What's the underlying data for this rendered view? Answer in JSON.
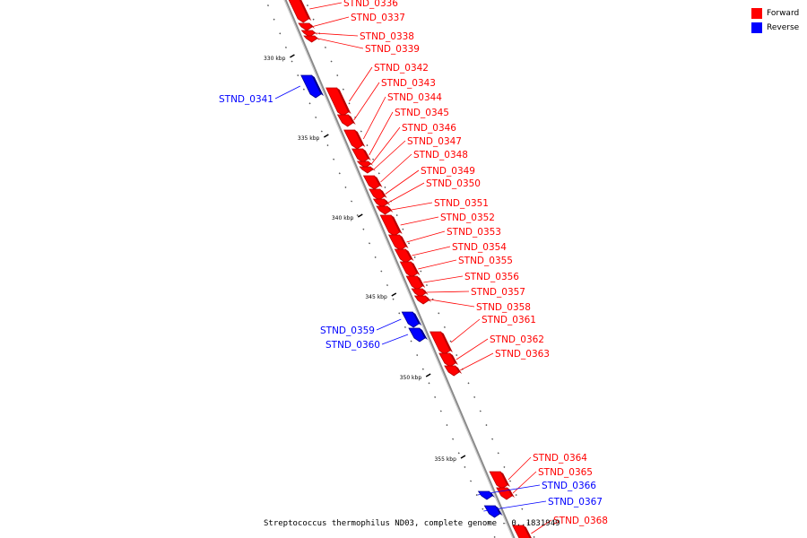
{
  "legend": [
    {
      "label": "Forward",
      "color": "#ff0000"
    },
    {
      "label": "Reverse",
      "color": "#0000ff"
    }
  ],
  "colors": {
    "forward": "#ff0000",
    "forward_dark": "#b80000",
    "reverse": "#0000ff",
    "reverse_dark": "#00008f",
    "backbone": "#888888"
  },
  "caption": "Streptococcus thermophilus ND03, complete genome - 0..1831949",
  "scale_labels": [
    "330 kbp",
    "335 kbp",
    "340 kbp",
    "345 kbp",
    "350 kbp",
    "355 kbp"
  ],
  "genes": [
    {
      "id": "STND_0336",
      "strand": "forward"
    },
    {
      "id": "STND_0337",
      "strand": "forward"
    },
    {
      "id": "STND_0338",
      "strand": "forward"
    },
    {
      "id": "STND_0339",
      "strand": "forward"
    },
    {
      "id": "STND_0341",
      "strand": "reverse"
    },
    {
      "id": "STND_0342",
      "strand": "forward"
    },
    {
      "id": "STND_0343",
      "strand": "forward"
    },
    {
      "id": "STND_0344",
      "strand": "forward"
    },
    {
      "id": "STND_0345",
      "strand": "forward"
    },
    {
      "id": "STND_0346",
      "strand": "forward"
    },
    {
      "id": "STND_0347",
      "strand": "forward"
    },
    {
      "id": "STND_0348",
      "strand": "forward"
    },
    {
      "id": "STND_0349",
      "strand": "forward"
    },
    {
      "id": "STND_0350",
      "strand": "forward"
    },
    {
      "id": "STND_0351",
      "strand": "forward"
    },
    {
      "id": "STND_0352",
      "strand": "forward"
    },
    {
      "id": "STND_0353",
      "strand": "forward"
    },
    {
      "id": "STND_0354",
      "strand": "forward"
    },
    {
      "id": "STND_0355",
      "strand": "forward"
    },
    {
      "id": "STND_0356",
      "strand": "forward"
    },
    {
      "id": "STND_0357",
      "strand": "forward"
    },
    {
      "id": "STND_0358",
      "strand": "forward"
    },
    {
      "id": "STND_0359",
      "strand": "reverse"
    },
    {
      "id": "STND_0360",
      "strand": "reverse"
    },
    {
      "id": "STND_0361",
      "strand": "forward"
    },
    {
      "id": "STND_0362",
      "strand": "forward"
    },
    {
      "id": "STND_0363",
      "strand": "forward"
    },
    {
      "id": "STND_0364",
      "strand": "forward"
    },
    {
      "id": "STND_0365",
      "strand": "forward"
    },
    {
      "id": "STND_0366",
      "strand": "reverse"
    },
    {
      "id": "STND_0367",
      "strand": "reverse"
    },
    {
      "id": "STND_0368",
      "strand": "forward"
    }
  ]
}
